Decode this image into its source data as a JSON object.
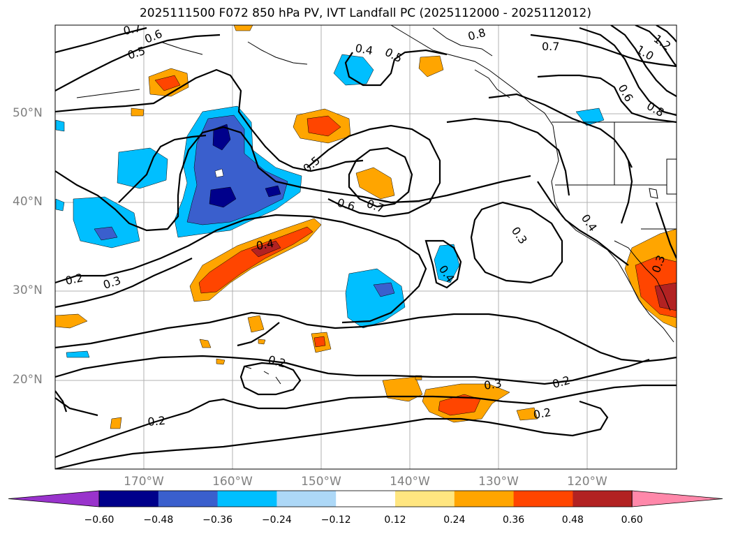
{
  "title": "2025111500 F072 850 hPa PV, IVT Landfall PC (2025112000 - 2025112012)",
  "lon_labels": [
    "170°W",
    "160°W",
    "150°W",
    "140°W",
    "130°W",
    "120°W"
  ],
  "lat_labels": [
    "50°N",
    "40°N",
    "30°N",
    "20°N"
  ],
  "colorbar": {
    "ticks": [
      "−0.60",
      "−0.48",
      "−0.36",
      "−0.24",
      "−0.12",
      "0.12",
      "0.24",
      "0.36",
      "0.48",
      "0.60"
    ],
    "colors": [
      "#9933cc",
      "#00008b",
      "#3a5fcd",
      "#00bfff",
      "#add8f7",
      "#ffffff",
      "#ffe680",
      "#ffa500",
      "#ff4500",
      "#b22222",
      "#ff88aa"
    ]
  },
  "contour_labels": [
    "0.7",
    "0.6",
    "0.5",
    "0.4",
    "0.5",
    "0.8",
    "0.7",
    "1.0",
    "1.2",
    "0.6",
    "0.8",
    "0.5",
    "0.6",
    "0.7",
    "0.4",
    "0.3",
    "0.4",
    "0.4",
    "0.2",
    "0.3",
    "0.2",
    "0.3",
    "0.3",
    "0.2",
    "0.2",
    "0.2"
  ]
}
